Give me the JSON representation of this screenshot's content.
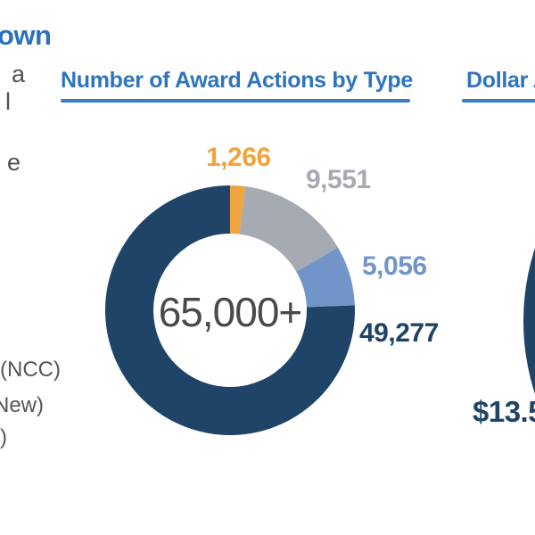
{
  "page": {
    "heading_fragment": "own",
    "left_edge_fragments": [
      "a",
      "l",
      "e",
      "(NCC)",
      "New)",
      ")"
    ]
  },
  "colors": {
    "title_blue": "#2e75bd",
    "heading_blue": "#2b71bd",
    "navy": "#1f4467",
    "orange": "#efa43f",
    "gray": "#a6aab2",
    "light_blue": "#7195c8",
    "center_text_gray": "#4a4a4a"
  },
  "chart_data": [
    {
      "type": "pie",
      "subtype": "donut",
      "title": "Number of Award Actions by Type",
      "center_label": "65,000+",
      "start_angle_deg": 0,
      "direction": "clockwise",
      "legend_position": "labels-around-ring",
      "segments": [
        {
          "label": "1,266",
          "value": 1266,
          "color": "#efa43f"
        },
        {
          "label": "9,551",
          "value": 9551,
          "color": "#a6aab2"
        },
        {
          "label": "5,056",
          "value": 5056,
          "color": "#7195c8"
        },
        {
          "label": "49,277",
          "value": 49277,
          "color": "#1f4467"
        }
      ]
    },
    {
      "type": "pie",
      "subtype": "donut",
      "title": "Dollar A",
      "visible_value_label": "$13.5",
      "color": "#1f4467"
    }
  ]
}
